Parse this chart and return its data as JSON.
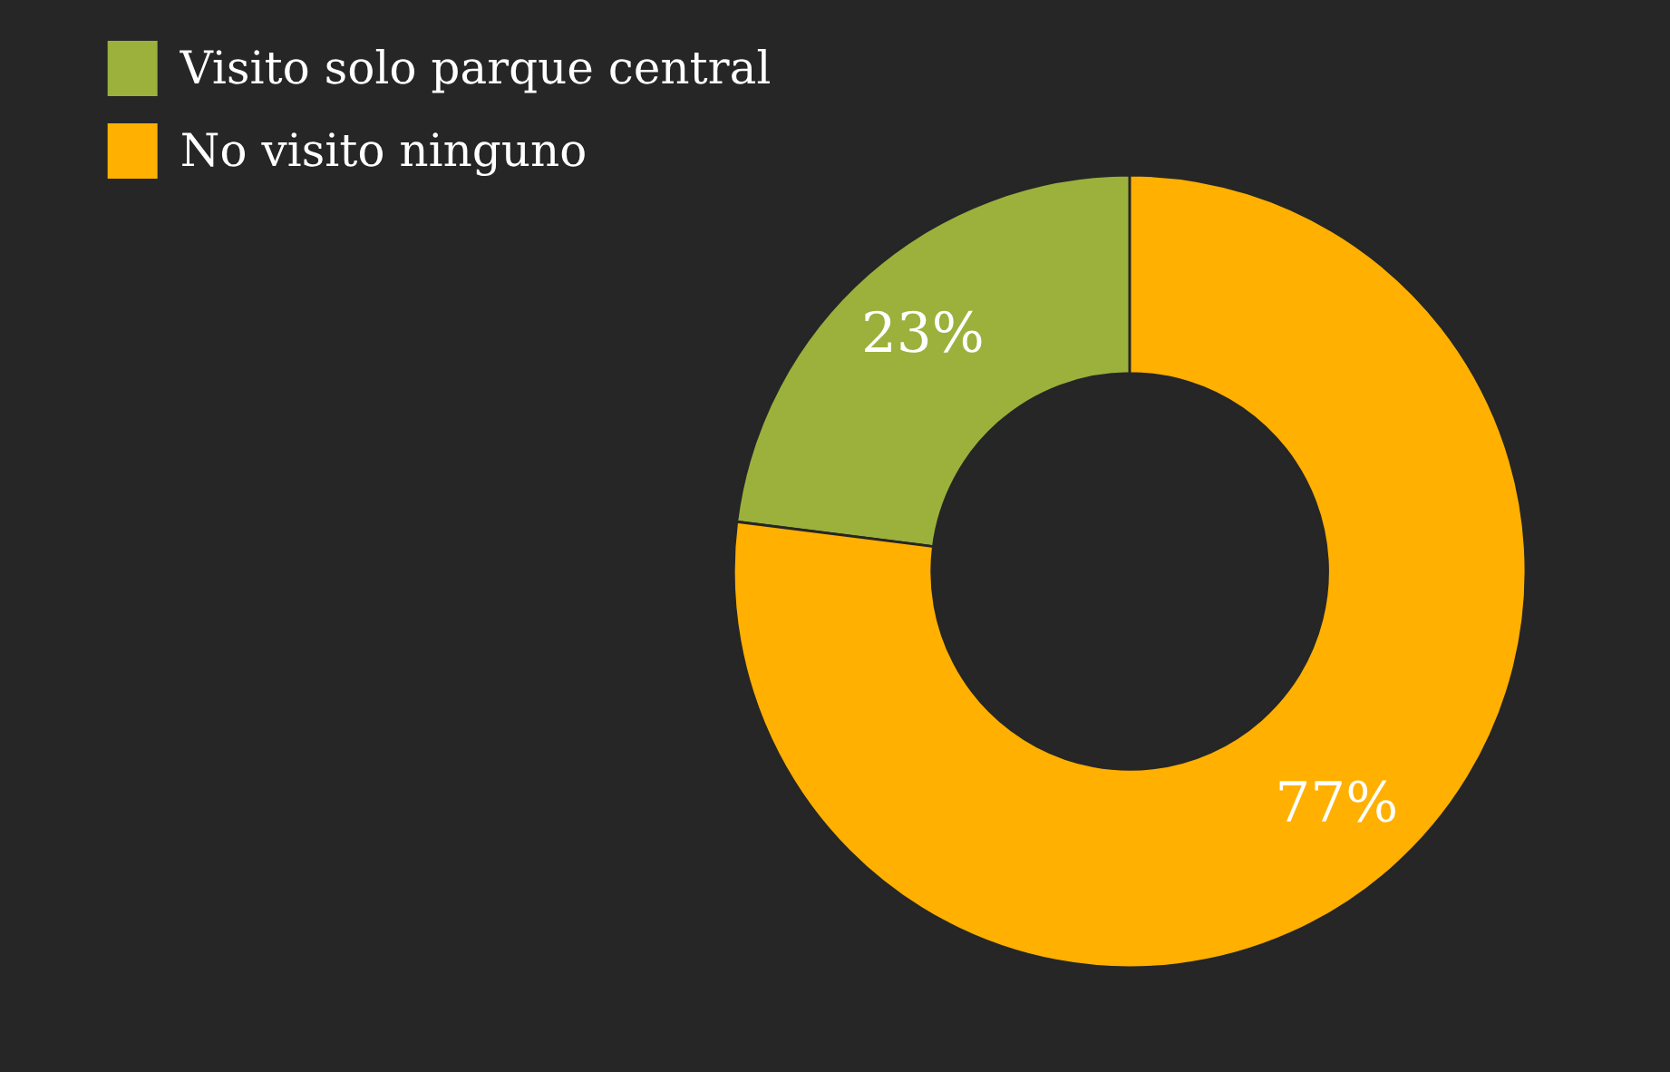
{
  "chart_data": {
    "type": "donut",
    "categories": [
      "Visito solo parque central",
      "No visito ninguno"
    ],
    "values": [
      23,
      77
    ],
    "colors": [
      "#9bb13c",
      "#ffb000"
    ],
    "value_labels": [
      "23%",
      "77%"
    ],
    "legend": "top left"
  }
}
